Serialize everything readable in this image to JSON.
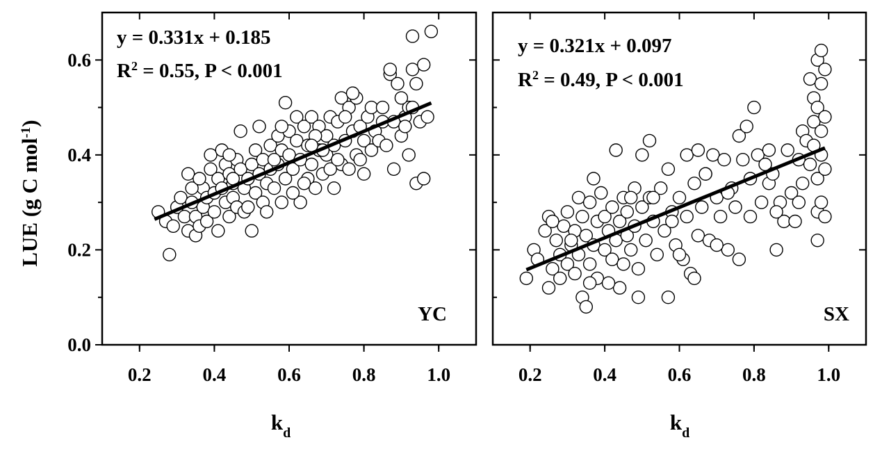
{
  "chart_data": {
    "type": "scatter",
    "ylabel": {
      "main": "LUE (g C mol",
      "sup": "-1",
      "close": ")"
    },
    "xlabel": {
      "main": "k",
      "sub": "d"
    },
    "xlim": [
      0.1,
      1.1
    ],
    "ylim": [
      0.0,
      0.7
    ],
    "xticks": [
      "0.2",
      "0.4",
      "0.6",
      "0.8",
      "1.0"
    ],
    "yticks": [
      "0.0",
      "0.2",
      "0.4",
      "0.6"
    ],
    "panels": [
      {
        "site": "YC",
        "equation": "y = 0.331x + 0.185",
        "r2_label": "R",
        "r2_sup": "2",
        "r2_rest": " = 0.55, P < 0.001",
        "fit": {
          "slope": 0.331,
          "intercept": 0.185,
          "xrange": [
            0.24,
            0.98
          ]
        },
        "points": [
          [
            0.25,
            0.28
          ],
          [
            0.27,
            0.26
          ],
          [
            0.28,
            0.19
          ],
          [
            0.29,
            0.25
          ],
          [
            0.3,
            0.29
          ],
          [
            0.31,
            0.31
          ],
          [
            0.32,
            0.27
          ],
          [
            0.33,
            0.36
          ],
          [
            0.33,
            0.24
          ],
          [
            0.34,
            0.3
          ],
          [
            0.35,
            0.27
          ],
          [
            0.35,
            0.23
          ],
          [
            0.36,
            0.25
          ],
          [
            0.37,
            0.33
          ],
          [
            0.37,
            0.29
          ],
          [
            0.38,
            0.31
          ],
          [
            0.38,
            0.26
          ],
          [
            0.39,
            0.37
          ],
          [
            0.39,
            0.4
          ],
          [
            0.4,
            0.32
          ],
          [
            0.4,
            0.28
          ],
          [
            0.41,
            0.35
          ],
          [
            0.41,
            0.24
          ],
          [
            0.42,
            0.33
          ],
          [
            0.42,
            0.41
          ],
          [
            0.43,
            0.38
          ],
          [
            0.43,
            0.3
          ],
          [
            0.44,
            0.36
          ],
          [
            0.44,
            0.27
          ],
          [
            0.45,
            0.34
          ],
          [
            0.45,
            0.31
          ],
          [
            0.46,
            0.39
          ],
          [
            0.46,
            0.29
          ],
          [
            0.47,
            0.37
          ],
          [
            0.47,
            0.45
          ],
          [
            0.48,
            0.33
          ],
          [
            0.48,
            0.28
          ],
          [
            0.49,
            0.35
          ],
          [
            0.5,
            0.24
          ],
          [
            0.5,
            0.38
          ],
          [
            0.51,
            0.41
          ],
          [
            0.51,
            0.32
          ],
          [
            0.52,
            0.36
          ],
          [
            0.52,
            0.46
          ],
          [
            0.53,
            0.3
          ],
          [
            0.53,
            0.39
          ],
          [
            0.54,
            0.34
          ],
          [
            0.55,
            0.42
          ],
          [
            0.55,
            0.37
          ],
          [
            0.56,
            0.33
          ],
          [
            0.57,
            0.44
          ],
          [
            0.57,
            0.38
          ],
          [
            0.58,
            0.3
          ],
          [
            0.58,
            0.41
          ],
          [
            0.59,
            0.35
          ],
          [
            0.59,
            0.51
          ],
          [
            0.6,
            0.4
          ],
          [
            0.6,
            0.45
          ],
          [
            0.61,
            0.37
          ],
          [
            0.62,
            0.48
          ],
          [
            0.62,
            0.43
          ],
          [
            0.63,
            0.3
          ],
          [
            0.63,
            0.39
          ],
          [
            0.64,
            0.46
          ],
          [
            0.65,
            0.35
          ],
          [
            0.65,
            0.42
          ],
          [
            0.66,
            0.48
          ],
          [
            0.66,
            0.38
          ],
          [
            0.67,
            0.33
          ],
          [
            0.68,
            0.41
          ],
          [
            0.68,
            0.46
          ],
          [
            0.69,
            0.36
          ],
          [
            0.7,
            0.44
          ],
          [
            0.7,
            0.4
          ],
          [
            0.71,
            0.48
          ],
          [
            0.72,
            0.33
          ],
          [
            0.72,
            0.42
          ],
          [
            0.73,
            0.47
          ],
          [
            0.74,
            0.38
          ],
          [
            0.74,
            0.52
          ],
          [
            0.75,
            0.43
          ],
          [
            0.76,
            0.37
          ],
          [
            0.76,
            0.5
          ],
          [
            0.77,
            0.45
          ],
          [
            0.78,
            0.4
          ],
          [
            0.78,
            0.52
          ],
          [
            0.79,
            0.46
          ],
          [
            0.8,
            0.36
          ],
          [
            0.8,
            0.43
          ],
          [
            0.81,
            0.48
          ],
          [
            0.82,
            0.41
          ],
          [
            0.83,
            0.45
          ],
          [
            0.84,
            0.43
          ],
          [
            0.85,
            0.47
          ],
          [
            0.86,
            0.42
          ],
          [
            0.87,
            0.57
          ],
          [
            0.87,
            0.58
          ],
          [
            0.88,
            0.37
          ],
          [
            0.88,
            0.47
          ],
          [
            0.89,
            0.55
          ],
          [
            0.9,
            0.44
          ],
          [
            0.91,
            0.48
          ],
          [
            0.92,
            0.5
          ],
          [
            0.92,
            0.4
          ],
          [
            0.93,
            0.58
          ],
          [
            0.93,
            0.5
          ],
          [
            0.94,
            0.55
          ],
          [
            0.94,
            0.34
          ],
          [
            0.95,
            0.47
          ],
          [
            0.96,
            0.59
          ],
          [
            0.96,
            0.35
          ],
          [
            0.97,
            0.48
          ],
          [
            0.98,
            0.66
          ],
          [
            0.93,
            0.65
          ],
          [
            0.34,
            0.33
          ],
          [
            0.36,
            0.35
          ],
          [
            0.44,
            0.4
          ],
          [
            0.49,
            0.29
          ],
          [
            0.54,
            0.28
          ],
          [
            0.56,
            0.39
          ],
          [
            0.61,
            0.32
          ],
          [
            0.64,
            0.34
          ],
          [
            0.67,
            0.44
          ],
          [
            0.69,
            0.41
          ],
          [
            0.71,
            0.37
          ],
          [
            0.73,
            0.39
          ],
          [
            0.75,
            0.48
          ],
          [
            0.77,
            0.53
          ],
          [
            0.79,
            0.39
          ],
          [
            0.82,
            0.5
          ],
          [
            0.85,
            0.5
          ],
          [
            0.9,
            0.52
          ],
          [
            0.91,
            0.46
          ],
          [
            0.45,
            0.35
          ],
          [
            0.58,
            0.46
          ],
          [
            0.66,
            0.42
          ]
        ]
      },
      {
        "site": "SX",
        "equation": "y = 0.321x + 0.097",
        "r2_label": "R",
        "r2_sup": "2",
        "r2_rest": " = 0.49, P < 0.001",
        "fit": {
          "slope": 0.321,
          "intercept": 0.097,
          "xrange": [
            0.19,
            0.99
          ]
        },
        "points": [
          [
            0.19,
            0.14
          ],
          [
            0.21,
            0.2
          ],
          [
            0.22,
            0.18
          ],
          [
            0.24,
            0.24
          ],
          [
            0.25,
            0.12
          ],
          [
            0.25,
            0.27
          ],
          [
            0.26,
            0.16
          ],
          [
            0.27,
            0.22
          ],
          [
            0.28,
            0.19
          ],
          [
            0.28,
            0.14
          ],
          [
            0.29,
            0.25
          ],
          [
            0.3,
            0.17
          ],
          [
            0.3,
            0.28
          ],
          [
            0.31,
            0.21
          ],
          [
            0.32,
            0.15
          ],
          [
            0.32,
            0.24
          ],
          [
            0.33,
            0.31
          ],
          [
            0.33,
            0.19
          ],
          [
            0.34,
            0.1
          ],
          [
            0.34,
            0.27
          ],
          [
            0.35,
            0.23
          ],
          [
            0.35,
            0.08
          ],
          [
            0.36,
            0.3
          ],
          [
            0.36,
            0.17
          ],
          [
            0.37,
            0.35
          ],
          [
            0.37,
            0.21
          ],
          [
            0.38,
            0.26
          ],
          [
            0.38,
            0.14
          ],
          [
            0.39,
            0.32
          ],
          [
            0.4,
            0.2
          ],
          [
            0.4,
            0.27
          ],
          [
            0.41,
            0.24
          ],
          [
            0.42,
            0.29
          ],
          [
            0.42,
            0.18
          ],
          [
            0.43,
            0.22
          ],
          [
            0.43,
            0.41
          ],
          [
            0.44,
            0.26
          ],
          [
            0.44,
            0.12
          ],
          [
            0.45,
            0.31
          ],
          [
            0.46,
            0.23
          ],
          [
            0.46,
            0.28
          ],
          [
            0.47,
            0.2
          ],
          [
            0.48,
            0.33
          ],
          [
            0.48,
            0.25
          ],
          [
            0.49,
            0.16
          ],
          [
            0.49,
            0.1
          ],
          [
            0.5,
            0.29
          ],
          [
            0.5,
            0.4
          ],
          [
            0.51,
            0.22
          ],
          [
            0.52,
            0.31
          ],
          [
            0.52,
            0.43
          ],
          [
            0.53,
            0.26
          ],
          [
            0.54,
            0.19
          ],
          [
            0.55,
            0.33
          ],
          [
            0.56,
            0.24
          ],
          [
            0.57,
            0.37
          ],
          [
            0.57,
            0.1
          ],
          [
            0.58,
            0.28
          ],
          [
            0.59,
            0.21
          ],
          [
            0.6,
            0.31
          ],
          [
            0.61,
            0.18
          ],
          [
            0.62,
            0.27
          ],
          [
            0.62,
            0.4
          ],
          [
            0.63,
            0.15
          ],
          [
            0.64,
            0.34
          ],
          [
            0.65,
            0.23
          ],
          [
            0.65,
            0.41
          ],
          [
            0.66,
            0.29
          ],
          [
            0.67,
            0.36
          ],
          [
            0.68,
            0.22
          ],
          [
            0.69,
            0.4
          ],
          [
            0.7,
            0.31
          ],
          [
            0.71,
            0.27
          ],
          [
            0.72,
            0.39
          ],
          [
            0.73,
            0.2
          ],
          [
            0.74,
            0.33
          ],
          [
            0.75,
            0.29
          ],
          [
            0.76,
            0.44
          ],
          [
            0.76,
            0.18
          ],
          [
            0.77,
            0.39
          ],
          [
            0.78,
            0.46
          ],
          [
            0.79,
            0.35
          ],
          [
            0.8,
            0.5
          ],
          [
            0.81,
            0.4
          ],
          [
            0.82,
            0.3
          ],
          [
            0.83,
            0.38
          ],
          [
            0.84,
            0.34
          ],
          [
            0.85,
            0.36
          ],
          [
            0.86,
            0.2
          ],
          [
            0.87,
            0.3
          ],
          [
            0.88,
            0.26
          ],
          [
            0.89,
            0.41
          ],
          [
            0.9,
            0.32
          ],
          [
            0.91,
            0.26
          ],
          [
            0.92,
            0.39
          ],
          [
            0.93,
            0.45
          ],
          [
            0.93,
            0.34
          ],
          [
            0.94,
            0.43
          ],
          [
            0.95,
            0.38
          ],
          [
            0.95,
            0.56
          ],
          [
            0.96,
            0.52
          ],
          [
            0.96,
            0.42
          ],
          [
            0.96,
            0.47
          ],
          [
            0.97,
            0.6
          ],
          [
            0.97,
            0.5
          ],
          [
            0.97,
            0.35
          ],
          [
            0.97,
            0.28
          ],
          [
            0.97,
            0.22
          ],
          [
            0.98,
            0.62
          ],
          [
            0.98,
            0.55
          ],
          [
            0.98,
            0.45
          ],
          [
            0.98,
            0.4
          ],
          [
            0.98,
            0.3
          ],
          [
            0.99,
            0.58
          ],
          [
            0.99,
            0.48
          ],
          [
            0.99,
            0.37
          ],
          [
            0.99,
            0.27
          ],
          [
            0.26,
            0.26
          ],
          [
            0.31,
            0.22
          ],
          [
            0.36,
            0.13
          ],
          [
            0.41,
            0.13
          ],
          [
            0.45,
            0.17
          ],
          [
            0.47,
            0.31
          ],
          [
            0.53,
            0.31
          ],
          [
            0.58,
            0.26
          ],
          [
            0.6,
            0.19
          ],
          [
            0.64,
            0.14
          ],
          [
            0.67,
            0.36
          ],
          [
            0.7,
            0.21
          ],
          [
            0.73,
            0.32
          ],
          [
            0.79,
            0.27
          ],
          [
            0.84,
            0.41
          ],
          [
            0.86,
            0.28
          ],
          [
            0.92,
            0.3
          ]
        ]
      }
    ]
  }
}
